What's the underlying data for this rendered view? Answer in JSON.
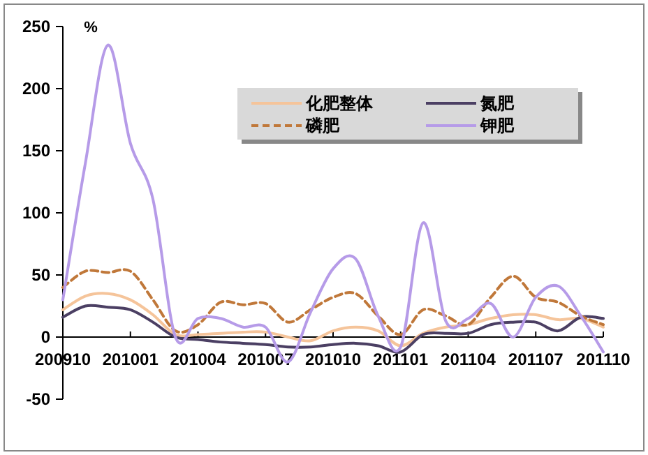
{
  "chart_data": {
    "type": "line",
    "ylabel": "%",
    "categories": [
      "200910",
      null,
      null,
      "201001",
      null,
      null,
      "201004",
      null,
      null,
      "201007",
      null,
      null,
      "201010",
      null,
      null,
      "201101",
      null,
      null,
      "201104",
      null,
      null,
      "201107",
      null,
      null,
      "201110"
    ],
    "series": [
      {
        "name": "化肥整体",
        "color": "#f5c49a",
        "line_style": "solid",
        "values": [
          22,
          33,
          35,
          30,
          18,
          2,
          2,
          3,
          4,
          4,
          0,
          -3,
          5,
          8,
          5,
          -7,
          3,
          8,
          10,
          15,
          18,
          18,
          14,
          15,
          8
        ]
      },
      {
        "name": "氮肥",
        "color": "#4b3f63",
        "line_style": "solid",
        "values": [
          16,
          25,
          24,
          22,
          12,
          0,
          -2,
          -4,
          -5,
          -6,
          -8,
          -8,
          -6,
          -5,
          -7,
          -12,
          2,
          3,
          3,
          10,
          12,
          12,
          5,
          16,
          15
        ]
      },
      {
        "name": "磷肥",
        "color": "#c0783a",
        "line_style": "dashed",
        "values": [
          40,
          53,
          52,
          53,
          30,
          5,
          10,
          28,
          26,
          27,
          12,
          22,
          32,
          35,
          17,
          2,
          22,
          17,
          10,
          32,
          49,
          32,
          28,
          17,
          10
        ]
      },
      {
        "name": "钾肥",
        "color": "#b69be8",
        "line_style": "solid",
        "values": [
          30,
          140,
          235,
          156,
          111,
          0,
          15,
          15,
          8,
          8,
          -20,
          20,
          55,
          63,
          17,
          -8,
          92,
          13,
          15,
          27,
          0,
          32,
          41,
          17,
          -12
        ]
      }
    ],
    "ylim": [
      -50,
      250
    ],
    "yticks": [
      -50,
      0,
      50,
      100,
      150,
      200,
      250
    ],
    "legend": "top right",
    "grid": false
  }
}
